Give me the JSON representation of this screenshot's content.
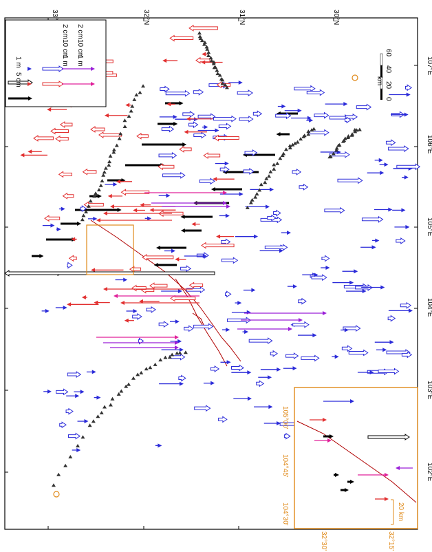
{
  "axes": {
    "lat_labels": [
      "33°N",
      "32°N",
      "31°N",
      "30°N"
    ],
    "lon_labels": [
      "102°E",
      "103°E",
      "104°E",
      "105°E",
      "106°E",
      "107°E"
    ]
  },
  "legend": {
    "black": [
      "1 m",
      "5 cm"
    ],
    "blue": [
      "2 cm",
      "10 cm",
      "1 m"
    ],
    "red": [
      "2 cm",
      "10 cm",
      "1 m"
    ]
  },
  "scalebar": {
    "unit": "km",
    "ticks": [
      "0",
      "20",
      "40",
      "60"
    ]
  },
  "inset": {
    "lat_labels": [
      "32°30'",
      "32°15'"
    ],
    "lon_labels": [
      "104°30'",
      "104°45'",
      "105°00'"
    ],
    "scale_label": "20 km"
  },
  "colors": {
    "black": "#000000",
    "blue": "#2b2bd9",
    "red": "#e23030",
    "magenta": "#e0209a",
    "purple": "#9a1fd8",
    "fault": "#b00000",
    "inset_frame": "#e08a1a"
  },
  "legend_entries": [
    {
      "label": "1 m",
      "color": "black",
      "style": "open"
    },
    {
      "label": "5 cm",
      "color": "black",
      "style": "filled"
    },
    {
      "label": "2 cm",
      "color": "blue",
      "style": "small"
    },
    {
      "label": "10 cm",
      "color": "blue",
      "style": "open"
    },
    {
      "label": "1 m",
      "color": "purple",
      "style": "line"
    },
    {
      "label": "2 cm",
      "color": "red",
      "style": "small"
    },
    {
      "label": "10 cm",
      "color": "red",
      "style": "open"
    },
    {
      "label": "1 m",
      "color": "magenta",
      "style": "line"
    }
  ]
}
